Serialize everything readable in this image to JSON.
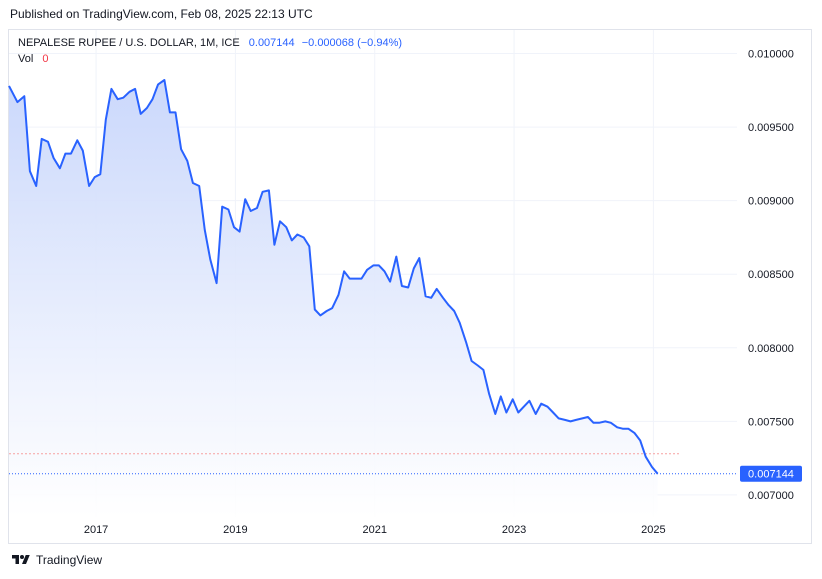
{
  "header": {
    "published": "Published on TradingView.com, Feb 08, 2025 22:13 UTC"
  },
  "legend": {
    "symbol": "NEPALESE RUPEE / U.S. DOLLAR, 1M, ICE",
    "last": "0.007144",
    "change": "−0.000068 (−0.94%)",
    "vol_label": "Vol",
    "vol_value": "0"
  },
  "footer": {
    "brand": "TradingView",
    "logo_icon": "tradingview-logo-icon"
  },
  "colors": {
    "line": "#2962ff",
    "fill_top": "#c8d6fb",
    "fill_bottom": "#ffffff",
    "last_price_bg": "#2962ff",
    "grid": "#f0f3fa",
    "dashed_ref": "#f7a1a1"
  },
  "chart_data": {
    "type": "area",
    "title": "NEPALESE RUPEE / U.S. DOLLAR, 1M, ICE",
    "xlabel": "",
    "ylabel": "",
    "y_ticks": [
      "0.010000",
      "0.009500",
      "0.009000",
      "0.008500",
      "0.008000",
      "0.007500",
      "0.007000"
    ],
    "x_ticks": [
      "2017",
      "2019",
      "2021",
      "2023",
      "2025"
    ],
    "x_tick_values": [
      2017,
      2019,
      2021,
      2023,
      2025
    ],
    "xlim": [
      2015.75,
      2026.2
    ],
    "ylim": [
      0.00685,
      0.01016
    ],
    "grid": true,
    "last_price_label": "0.007144",
    "reference_line": 0.00728,
    "series": [
      {
        "values": [
          [
            2015.75,
            0.00978
          ],
          [
            2015.87,
            0.00967
          ],
          [
            2015.97,
            0.00971
          ],
          [
            2016.05,
            0.0092
          ],
          [
            2016.14,
            0.0091
          ],
          [
            2016.22,
            0.00942
          ],
          [
            2016.31,
            0.0094
          ],
          [
            2016.39,
            0.00929
          ],
          [
            2016.48,
            0.00922
          ],
          [
            2016.56,
            0.00932
          ],
          [
            2016.64,
            0.00932
          ],
          [
            2016.73,
            0.00941
          ],
          [
            2016.81,
            0.00934
          ],
          [
            2016.9,
            0.0091
          ],
          [
            2016.98,
            0.00916
          ],
          [
            2017.06,
            0.00918
          ],
          [
            2017.14,
            0.00955
          ],
          [
            2017.22,
            0.00976
          ],
          [
            2017.31,
            0.00969
          ],
          [
            2017.39,
            0.0097
          ],
          [
            2017.48,
            0.00974
          ],
          [
            2017.56,
            0.00976
          ],
          [
            2017.64,
            0.00959
          ],
          [
            2017.73,
            0.00963
          ],
          [
            2017.81,
            0.00969
          ],
          [
            2017.89,
            0.00979
          ],
          [
            2017.98,
            0.00982
          ],
          [
            2018.06,
            0.0096
          ],
          [
            2018.14,
            0.0096
          ],
          [
            2018.22,
            0.00935
          ],
          [
            2018.31,
            0.00927
          ],
          [
            2018.39,
            0.00912
          ],
          [
            2018.48,
            0.0091
          ],
          [
            2018.56,
            0.0088
          ],
          [
            2018.64,
            0.0086
          ],
          [
            2018.73,
            0.00844
          ],
          [
            2018.81,
            0.00896
          ],
          [
            2018.9,
            0.00894
          ],
          [
            2018.98,
            0.00882
          ],
          [
            2019.06,
            0.00879
          ],
          [
            2019.14,
            0.00901
          ],
          [
            2019.22,
            0.00893
          ],
          [
            2019.31,
            0.00895
          ],
          [
            2019.39,
            0.00906
          ],
          [
            2019.48,
            0.00907
          ],
          [
            2019.56,
            0.0087
          ],
          [
            2019.64,
            0.00886
          ],
          [
            2019.73,
            0.00882
          ],
          [
            2019.81,
            0.00873
          ],
          [
            2019.89,
            0.00877
          ],
          [
            2019.98,
            0.00875
          ],
          [
            2020.06,
            0.00869
          ],
          [
            2020.14,
            0.00826
          ],
          [
            2020.22,
            0.00822
          ],
          [
            2020.31,
            0.00825
          ],
          [
            2020.39,
            0.00827
          ],
          [
            2020.48,
            0.00836
          ],
          [
            2020.56,
            0.00852
          ],
          [
            2020.64,
            0.00847
          ],
          [
            2020.73,
            0.00847
          ],
          [
            2020.81,
            0.00847
          ],
          [
            2020.89,
            0.00853
          ],
          [
            2020.98,
            0.00856
          ],
          [
            2021.06,
            0.00856
          ],
          [
            2021.14,
            0.00852
          ],
          [
            2021.22,
            0.00845
          ],
          [
            2021.31,
            0.00862
          ],
          [
            2021.39,
            0.00842
          ],
          [
            2021.48,
            0.00841
          ],
          [
            2021.56,
            0.00854
          ],
          [
            2021.64,
            0.00861
          ],
          [
            2021.73,
            0.00835
          ],
          [
            2021.81,
            0.00834
          ],
          [
            2021.89,
            0.0084
          ],
          [
            2021.98,
            0.00834
          ],
          [
            2022.06,
            0.00829
          ],
          [
            2022.14,
            0.00825
          ],
          [
            2022.22,
            0.00817
          ],
          [
            2022.31,
            0.00804
          ],
          [
            2022.39,
            0.00791
          ],
          [
            2022.48,
            0.00788
          ],
          [
            2022.56,
            0.00785
          ],
          [
            2022.64,
            0.00769
          ],
          [
            2022.73,
            0.00755
          ],
          [
            2022.81,
            0.00767
          ],
          [
            2022.89,
            0.00756
          ],
          [
            2022.98,
            0.00765
          ],
          [
            2023.06,
            0.00756
          ],
          [
            2023.14,
            0.0076
          ],
          [
            2023.22,
            0.00764
          ],
          [
            2023.31,
            0.00755
          ],
          [
            2023.39,
            0.00762
          ],
          [
            2023.48,
            0.0076
          ],
          [
            2023.56,
            0.00756
          ],
          [
            2023.64,
            0.00752
          ],
          [
            2023.73,
            0.00751
          ],
          [
            2023.81,
            0.0075
          ],
          [
            2023.89,
            0.00751
          ],
          [
            2023.98,
            0.00752
          ],
          [
            2024.06,
            0.00753
          ],
          [
            2024.14,
            0.00749
          ],
          [
            2024.22,
            0.00749
          ],
          [
            2024.31,
            0.0075
          ],
          [
            2024.39,
            0.00749
          ],
          [
            2024.48,
            0.00746
          ],
          [
            2024.56,
            0.00745
          ],
          [
            2024.64,
            0.00745
          ],
          [
            2024.73,
            0.00742
          ],
          [
            2024.81,
            0.00737
          ],
          [
            2024.89,
            0.00726
          ],
          [
            2024.98,
            0.00719
          ],
          [
            2025.06,
            0.007144
          ]
        ]
      }
    ]
  }
}
